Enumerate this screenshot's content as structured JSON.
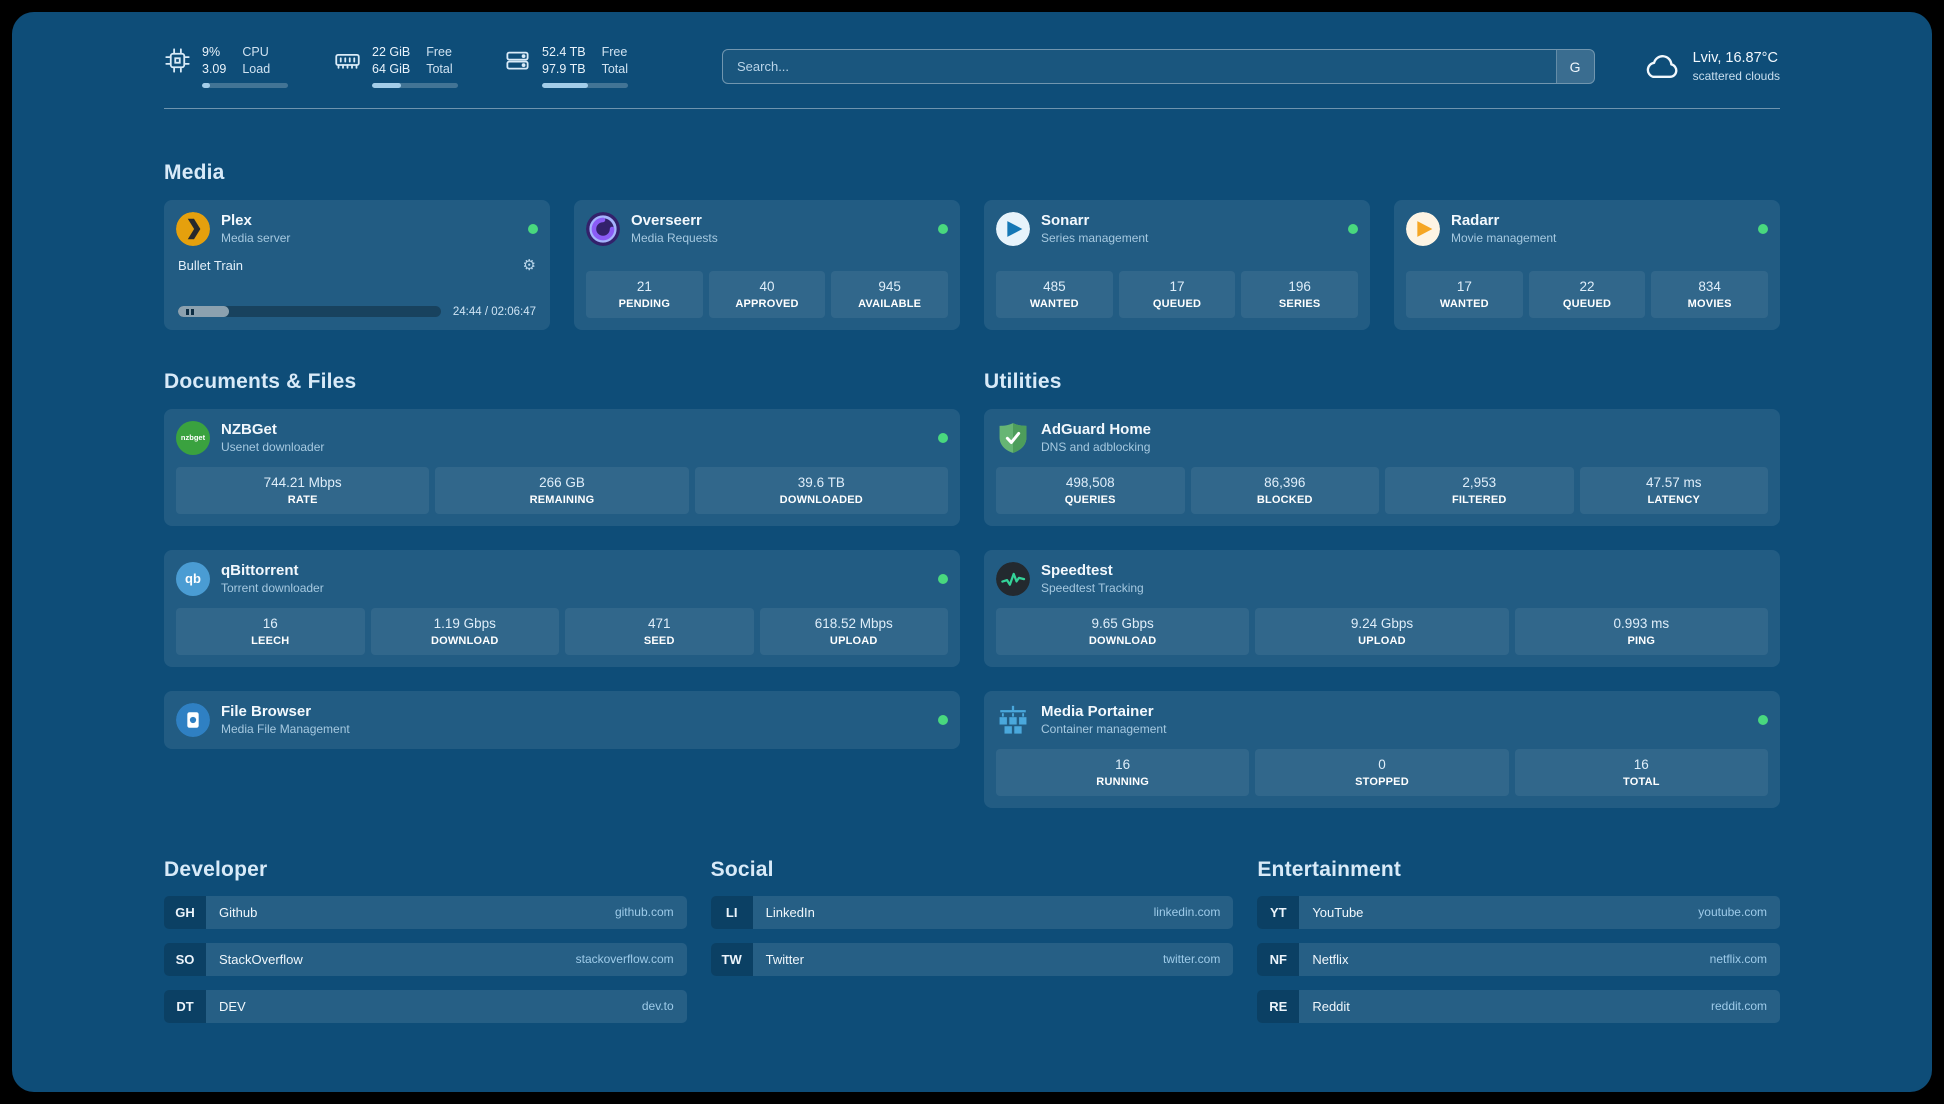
{
  "theme": {
    "background": "#0e4d78",
    "online_status": "#49d87e",
    "plex_orange": "#e5a00d",
    "adguard_green": "#66b574",
    "speedtest_pulse": "#34d399"
  },
  "topbar": {
    "cpu": {
      "value_top": "9%",
      "value_bottom": "3.09",
      "label_top": "CPU",
      "label_bottom": "Load",
      "bar_percent": 9
    },
    "memory": {
      "value_top": "22 GiB",
      "value_bottom": "64 GiB",
      "label_top": "Free",
      "label_bottom": "Total",
      "bar_percent": 34
    },
    "disk": {
      "value_top": "52.4 TB",
      "value_bottom": "97.9 TB",
      "label_top": "Free",
      "label_bottom": "Total",
      "bar_percent": 54
    },
    "search": {
      "placeholder": "Search...",
      "provider_label": "G"
    },
    "weather": {
      "location": "Lviv, 16.87°C",
      "condition": "scattered clouds"
    }
  },
  "media": {
    "heading": "Media",
    "plex": {
      "title": "Plex",
      "subtitle": "Media server",
      "now_playing": "Bullet Train",
      "time": "24:44 / 02:06:47",
      "progress_percent": 19.5
    },
    "overseerr": {
      "title": "Overseerr",
      "subtitle": "Media Requests",
      "stats": [
        {
          "value": "21",
          "label": "PENDING"
        },
        {
          "value": "40",
          "label": "APPROVED"
        },
        {
          "value": "945",
          "label": "AVAILABLE"
        }
      ]
    },
    "sonarr": {
      "title": "Sonarr",
      "subtitle": "Series management",
      "stats": [
        {
          "value": "485",
          "label": "WANTED"
        },
        {
          "value": "17",
          "label": "QUEUED"
        },
        {
          "value": "196",
          "label": "SERIES"
        }
      ]
    },
    "radarr": {
      "title": "Radarr",
      "subtitle": "Movie management",
      "stats": [
        {
          "value": "17",
          "label": "WANTED"
        },
        {
          "value": "22",
          "label": "QUEUED"
        },
        {
          "value": "834",
          "label": "MOVIES"
        }
      ]
    }
  },
  "documents": {
    "heading": "Documents & Files",
    "nzbget": {
      "title": "NZBGet",
      "subtitle": "Usenet downloader",
      "icon_text": "nzbget",
      "stats": [
        {
          "value": "744.21 Mbps",
          "label": "RATE"
        },
        {
          "value": "266 GB",
          "label": "REMAINING"
        },
        {
          "value": "39.6 TB",
          "label": "DOWNLOADED"
        }
      ]
    },
    "qbittorrent": {
      "title": "qBittorrent",
      "subtitle": "Torrent downloader",
      "icon_text": "qb",
      "stats": [
        {
          "value": "16",
          "label": "LEECH"
        },
        {
          "value": "1.19 Gbps",
          "label": "DOWNLOAD"
        },
        {
          "value": "471",
          "label": "SEED"
        },
        {
          "value": "618.52 Mbps",
          "label": "UPLOAD"
        }
      ]
    },
    "filebrowser": {
      "title": "File Browser",
      "subtitle": "Media File Management"
    }
  },
  "utilities": {
    "heading": "Utilities",
    "adguard": {
      "title": "AdGuard Home",
      "subtitle": "DNS and adblocking",
      "stats": [
        {
          "value": "498,508",
          "label": "QUERIES"
        },
        {
          "value": "86,396",
          "label": "BLOCKED"
        },
        {
          "value": "2,953",
          "label": "FILTERED"
        },
        {
          "value": "47.57 ms",
          "label": "LATENCY"
        }
      ]
    },
    "speedtest": {
      "title": "Speedtest",
      "subtitle": "Speedtest Tracking",
      "stats": [
        {
          "value": "9.65 Gbps",
          "label": "DOWNLOAD"
        },
        {
          "value": "9.24 Gbps",
          "label": "UPLOAD"
        },
        {
          "value": "0.993 ms",
          "label": "PING"
        }
      ]
    },
    "portainer": {
      "title": "Media Portainer",
      "subtitle": "Container management",
      "stats": [
        {
          "value": "16",
          "label": "RUNNING"
        },
        {
          "value": "0",
          "label": "STOPPED"
        },
        {
          "value": "16",
          "label": "TOTAL"
        }
      ]
    }
  },
  "bookmarks": {
    "developer": {
      "heading": "Developer",
      "items": [
        {
          "abbr": "GH",
          "name": "Github",
          "domain": "github.com"
        },
        {
          "abbr": "SO",
          "name": "StackOverflow",
          "domain": "stackoverflow.com"
        },
        {
          "abbr": "DT",
          "name": "DEV",
          "domain": "dev.to"
        }
      ]
    },
    "social": {
      "heading": "Social",
      "items": [
        {
          "abbr": "LI",
          "name": "LinkedIn",
          "domain": "linkedin.com"
        },
        {
          "abbr": "TW",
          "name": "Twitter",
          "domain": "twitter.com"
        }
      ]
    },
    "entertainment": {
      "heading": "Entertainment",
      "items": [
        {
          "abbr": "YT",
          "name": "YouTube",
          "domain": "youtube.com"
        },
        {
          "abbr": "NF",
          "name": "Netflix",
          "domain": "netflix.com"
        },
        {
          "abbr": "RE",
          "name": "Reddit",
          "domain": "reddit.com"
        }
      ]
    }
  }
}
